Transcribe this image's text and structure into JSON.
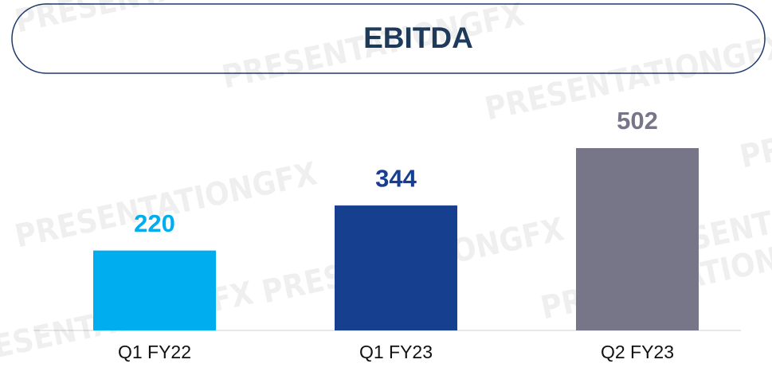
{
  "chart_data": {
    "type": "bar",
    "title": "EBITDA",
    "categories": [
      "Q1 FY22",
      "Q1 FY23",
      "Q2 FY23"
    ],
    "values": [
      220,
      344,
      502
    ],
    "colors": [
      "#00aeef",
      "#173f8f",
      "#777588"
    ],
    "watermark": "PRESENTATIONGFX"
  }
}
